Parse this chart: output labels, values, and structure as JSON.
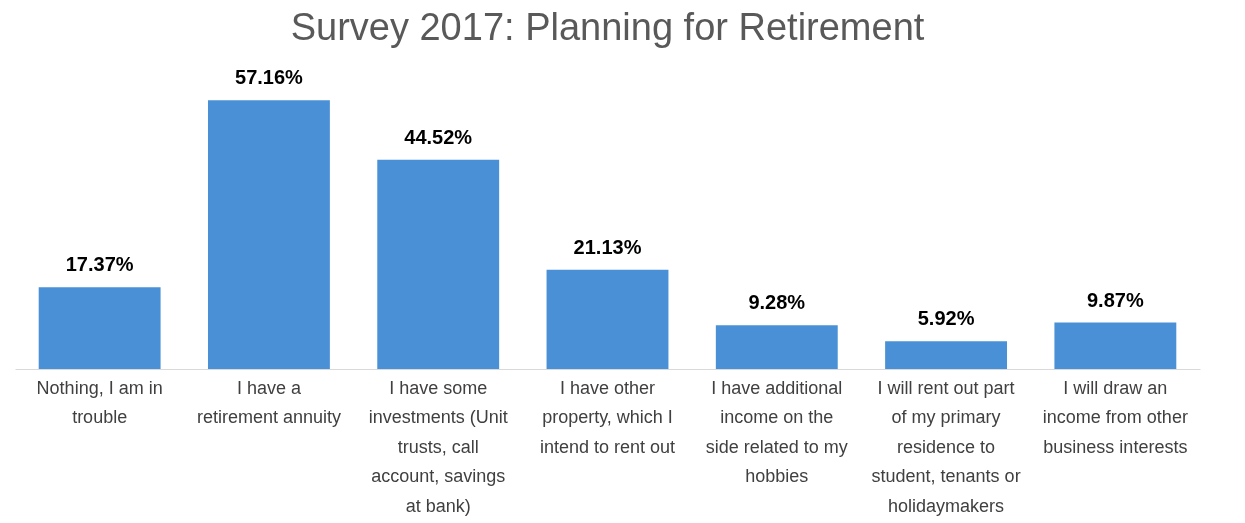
{
  "chart_data": {
    "type": "bar",
    "title": "Survey 2017: Planning for Retirement",
    "categories": [
      "Nothing, I am in trouble",
      "I have a retirement annuity",
      "I have some investments (Unit trusts, call account, savings at bank)",
      "I have other property, which I intend to rent out",
      "I have additional income on the side related to my hobbies",
      "I will rent out part of my primary residence to student, tenants or holidaymakers",
      "I will draw an income from other business interests"
    ],
    "values": [
      17.37,
      57.16,
      44.52,
      21.13,
      9.28,
      5.92,
      9.87
    ],
    "value_labels": [
      "17.37%",
      "57.16%",
      "44.52%",
      "21.13%",
      "9.28%",
      "5.92%",
      "9.87%"
    ],
    "color": "#4a90d6"
  }
}
